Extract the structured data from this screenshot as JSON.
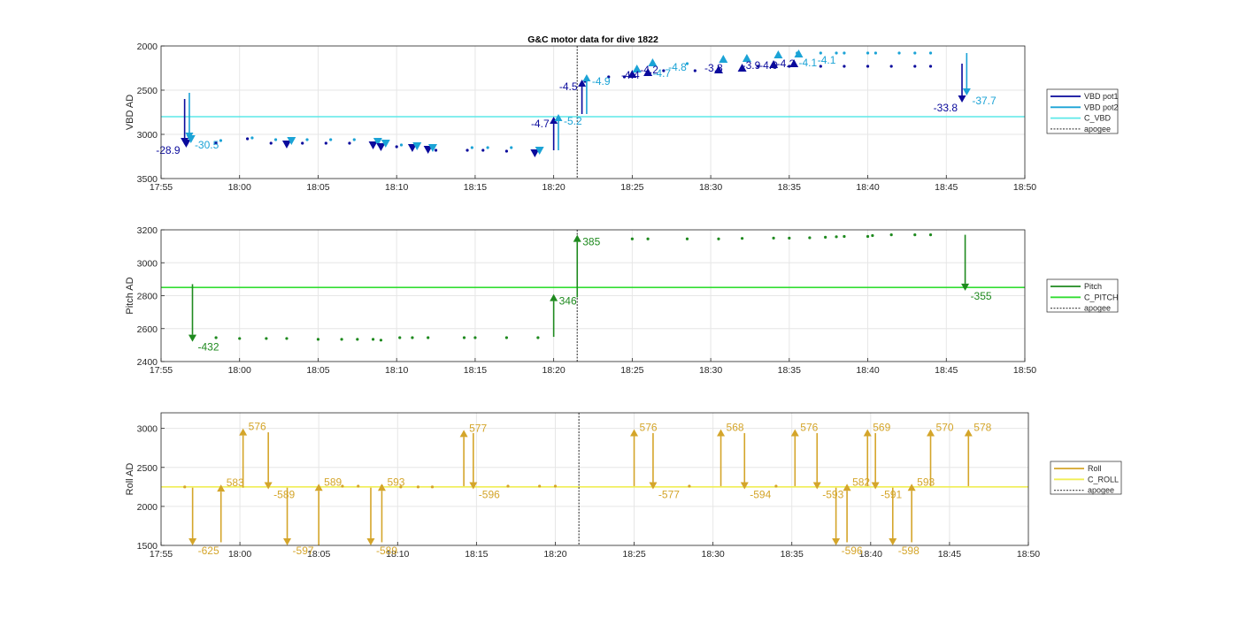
{
  "title": "G&C motor data for dive 1822",
  "colors": {
    "vbd_pot1": "#0a0a9c",
    "vbd_pot2": "#1ba3d6",
    "c_vbd": "#5ce8e8",
    "pitch": "#1f8a1f",
    "c_pitch": "#33dd33",
    "roll": "#d4a52a",
    "c_roll": "#f0ee55",
    "apogee": "#555555",
    "grid": "#e6e6e6"
  },
  "chart_data": [
    {
      "type": "scatter",
      "id": "vbd",
      "ylabel": "VBD AD",
      "xlabel": "",
      "y_reversed": true,
      "xlim": [
        "17:55",
        "18:50"
      ],
      "ylim": [
        2000,
        3500
      ],
      "xticks": [
        "17:55",
        "18:00",
        "18:05",
        "18:10",
        "18:15",
        "18:20",
        "18:25",
        "18:30",
        "18:35",
        "18:40",
        "18:45",
        "18:50"
      ],
      "yticks": [
        2000,
        2500,
        3000,
        3500
      ],
      "legend": [
        "VBD pot1",
        "VBD pot2",
        "C_VBD",
        "apogee"
      ],
      "legend_position": "outside-right",
      "c_value": 2800,
      "apogee": "18:21.5",
      "series": [
        {
          "name": "VBD pot1",
          "points": [
            [
              "17:58.5",
              3100
            ],
            [
              "18:00.5",
              3050
            ],
            [
              "18:02",
              3100
            ],
            [
              "18:04",
              3100
            ],
            [
              "18:05.5",
              3100
            ],
            [
              "18:07",
              3100
            ],
            [
              "18:08.5",
              3100
            ],
            [
              "18:10",
              3140
            ],
            [
              "18:11",
              3140
            ],
            [
              "18:12.5",
              3180
            ],
            [
              "18:14.5",
              3180
            ],
            [
              "18:15.5",
              3180
            ],
            [
              "18:17",
              3190
            ],
            [
              "18:22",
              2400
            ],
            [
              "18:23.5",
              2350
            ],
            [
              "18:24.5",
              2350
            ],
            [
              "18:27",
              2280
            ],
            [
              "18:29",
              2280
            ],
            [
              "18:33",
              2230
            ],
            [
              "18:35",
              2230
            ],
            [
              "18:37",
              2230
            ],
            [
              "18:38.5",
              2230
            ],
            [
              "18:40",
              2230
            ],
            [
              "18:41.5",
              2230
            ],
            [
              "18:43",
              2230
            ],
            [
              "18:44",
              2230
            ]
          ]
        },
        {
          "name": "VBD pot2",
          "points": [
            [
              "17:58.8",
              3070
            ],
            [
              "18:00.8",
              3040
            ],
            [
              "18:02.3",
              3060
            ],
            [
              "18:04.3",
              3060
            ],
            [
              "18:05.8",
              3060
            ],
            [
              "18:07.3",
              3060
            ],
            [
              "18:10.3",
              3120
            ],
            [
              "18:11.3",
              3120
            ],
            [
              "18:14.8",
              3150
            ],
            [
              "18:15.8",
              3150
            ],
            [
              "18:17.3",
              3150
            ],
            [
              "18:28.5",
              2200
            ],
            [
              "18:35.5",
              2080
            ],
            [
              "18:37",
              2080
            ],
            [
              "18:38",
              2080
            ],
            [
              "18:38.5",
              2080
            ],
            [
              "18:40",
              2080
            ],
            [
              "18:40.5",
              2080
            ],
            [
              "18:42",
              2080
            ],
            [
              "18:43",
              2080
            ],
            [
              "18:44",
              2080
            ]
          ]
        }
      ],
      "moves": [
        {
          "series": "VBD pot1",
          "x": "17:56.5",
          "from": 2600,
          "to": 3120,
          "label": "-28.9"
        },
        {
          "series": "VBD pot2",
          "x": "17:56.8",
          "from": 2530,
          "to": 3060,
          "label": "-30.5"
        },
        {
          "series": "VBD pot1",
          "x": "18:20",
          "from": 3180,
          "to": 2800,
          "label": "-4.7"
        },
        {
          "series": "VBD pot2",
          "x": "18:20.3",
          "from": 3180,
          "to": 2770,
          "label": "-5.2"
        },
        {
          "series": "VBD pot1",
          "x": "18:21.8",
          "from": 2770,
          "to": 2380,
          "label": "-4.5"
        },
        {
          "series": "VBD pot2",
          "x": "18:22.1",
          "from": 2770,
          "to": 2320,
          "label": "-4.9"
        },
        {
          "series": "VBD pot1",
          "x": "18:46",
          "from": 2200,
          "to": 2640,
          "label": "-33.8"
        },
        {
          "series": "VBD pot2",
          "x": "18:46.3",
          "from": 2080,
          "to": 2560,
          "label": "-37.7"
        }
      ],
      "markers": [
        {
          "series": "VBD pot1",
          "x": "17:56.6",
          "y": 3110,
          "dir": "down"
        },
        {
          "series": "VBD pot2",
          "x": "17:56.9",
          "y": 3060,
          "dir": "down"
        },
        {
          "series": "VBD pot1",
          "x": "18:03",
          "y": 3120,
          "dir": "down"
        },
        {
          "series": "VBD pot2",
          "x": "18:03.3",
          "y": 3080,
          "dir": "down"
        },
        {
          "series": "VBD pot1",
          "x": "18:08.5",
          "y": 3130,
          "dir": "down"
        },
        {
          "series": "VBD pot2",
          "x": "18:08.8",
          "y": 3090,
          "dir": "down"
        },
        {
          "series": "VBD pot1",
          "x": "18:09",
          "y": 3150,
          "dir": "down"
        },
        {
          "series": "VBD pot2",
          "x": "18:09.3",
          "y": 3110,
          "dir": "down"
        },
        {
          "series": "VBD pot1",
          "x": "18:11",
          "y": 3160,
          "dir": "down"
        },
        {
          "series": "VBD pot2",
          "x": "18:11.3",
          "y": 3140,
          "dir": "down"
        },
        {
          "series": "VBD pot1",
          "x": "18:12",
          "y": 3180,
          "dir": "down"
        },
        {
          "series": "VBD pot2",
          "x": "18:12.3",
          "y": 3160,
          "dir": "down"
        },
        {
          "series": "VBD pot1",
          "x": "18:18.8",
          "y": 3220,
          "dir": "down"
        },
        {
          "series": "VBD pot2",
          "x": "18:19.1",
          "y": 3190,
          "dir": "down"
        },
        {
          "series": "VBD pot1",
          "x": "18:25",
          "y": 2310,
          "dir": "up"
        },
        {
          "series": "VBD pot2",
          "x": "18:25.3",
          "y": 2250,
          "dir": "up"
        },
        {
          "series": "VBD pot1",
          "x": "18:26",
          "y": 2290,
          "dir": "up"
        },
        {
          "series": "VBD pot2",
          "x": "18:26.3",
          "y": 2180,
          "dir": "up"
        },
        {
          "series": "VBD pot1",
          "x": "18:30.5",
          "y": 2260,
          "dir": "up"
        },
        {
          "series": "VBD pot2",
          "x": "18:30.8",
          "y": 2140,
          "dir": "up"
        },
        {
          "series": "VBD pot1",
          "x": "18:32",
          "y": 2240,
          "dir": "up"
        },
        {
          "series": "VBD pot2",
          "x": "18:32.3",
          "y": 2130,
          "dir": "up"
        },
        {
          "series": "VBD pot1",
          "x": "18:34",
          "y": 2200,
          "dir": "up"
        },
        {
          "series": "VBD pot2",
          "x": "18:34.3",
          "y": 2090,
          "dir": "up"
        },
        {
          "series": "VBD pot1",
          "x": "18:35.3",
          "y": 2190,
          "dir": "up"
        },
        {
          "series": "VBD pot2",
          "x": "18:35.6",
          "y": 2080,
          "dir": "up"
        }
      ],
      "annotations": [
        {
          "x": "18:24.3",
          "y": 2370,
          "text": "-4.4",
          "series": "VBD pot1"
        },
        {
          "x": "18:25.5",
          "y": 2310,
          "text": "-4.2",
          "series": "VBD pot1"
        },
        {
          "x": "18:26.3",
          "y": 2350,
          "text": "-4.7",
          "series": "VBD pot2"
        },
        {
          "x": "18:27.3",
          "y": 2280,
          "text": "-4.8",
          "series": "VBD pot2"
        },
        {
          "x": "18:29.6",
          "y": 2290,
          "text": "-3.8",
          "series": "VBD pot1"
        },
        {
          "x": "18:32",
          "y": 2260,
          "text": "-3.9",
          "series": "VBD pot1"
        },
        {
          "x": "18:33.1",
          "y": 2260,
          "text": "-4.0",
          "series": "VBD pot1"
        },
        {
          "x": "18:34.2",
          "y": 2240,
          "text": "-4.2",
          "series": "VBD pot1"
        },
        {
          "x": "18:35.6",
          "y": 2230,
          "text": "-4.1",
          "series": "VBD pot2"
        },
        {
          "x": "18:36.8",
          "y": 2200,
          "text": "-4.1",
          "series": "VBD pot2"
        }
      ]
    },
    {
      "type": "scatter",
      "id": "pitch",
      "ylabel": "Pitch AD",
      "xlabel": "",
      "xlim": [
        "17:55",
        "18:50"
      ],
      "ylim": [
        2400,
        3200
      ],
      "xticks": [
        "17:55",
        "18:00",
        "18:05",
        "18:10",
        "18:15",
        "18:20",
        "18:25",
        "18:30",
        "18:35",
        "18:40",
        "18:45",
        "18:50"
      ],
      "yticks": [
        2400,
        2600,
        2800,
        3000,
        3200
      ],
      "legend": [
        "Pitch",
        "C_PITCH",
        "apogee"
      ],
      "legend_position": "outside-right",
      "c_value": 2850,
      "apogee": "18:21.5",
      "series": [
        {
          "name": "Pitch",
          "points": [
            [
              "17:58.5",
              2545
            ],
            [
              "18:00",
              2540
            ],
            [
              "18:01.7",
              2540
            ],
            [
              "18:03",
              2540
            ],
            [
              "18:05",
              2535
            ],
            [
              "18:06.5",
              2535
            ],
            [
              "18:07.5",
              2535
            ],
            [
              "18:08.5",
              2535
            ],
            [
              "18:09",
              2530
            ],
            [
              "18:10.2",
              2545
            ],
            [
              "18:11",
              2545
            ],
            [
              "18:12",
              2545
            ],
            [
              "18:14.3",
              2545
            ],
            [
              "18:15",
              2545
            ],
            [
              "18:17",
              2545
            ],
            [
              "18:19",
              2545
            ],
            [
              "18:25",
              3145
            ],
            [
              "18:26",
              3145
            ],
            [
              "18:28.5",
              3145
            ],
            [
              "18:30.5",
              3145
            ],
            [
              "18:32",
              3148
            ],
            [
              "18:34",
              3150
            ],
            [
              "18:35",
              3150
            ],
            [
              "18:36.3",
              3152
            ],
            [
              "18:37.3",
              3155
            ],
            [
              "18:38",
              3158
            ],
            [
              "18:38.5",
              3160
            ],
            [
              "18:40",
              3160
            ],
            [
              "18:40.3",
              3165
            ],
            [
              "18:41.5",
              3170
            ],
            [
              "18:43",
              3170
            ],
            [
              "18:44",
              3170
            ]
          ]
        }
      ],
      "moves": [
        {
          "series": "Pitch",
          "x": "17:57",
          "from": 2870,
          "to": 2520,
          "label": "-432"
        },
        {
          "series": "Pitch",
          "x": "18:20",
          "from": 2550,
          "to": 2810,
          "label": "346"
        },
        {
          "series": "Pitch",
          "x": "18:21.5",
          "from": 2790,
          "to": 3170,
          "label": "385"
        },
        {
          "series": "Pitch",
          "x": "18:46.2",
          "from": 3170,
          "to": 2830,
          "label": "-355"
        }
      ],
      "markers": [],
      "annotations": []
    },
    {
      "type": "scatter",
      "id": "roll",
      "ylabel": "Roll AD",
      "xlabel": "",
      "xlim": [
        "17:55",
        "18:50"
      ],
      "ylim": [
        1500,
        3200
      ],
      "xticks": [
        "17:55",
        "18:00",
        "18:05",
        "18:10",
        "18:15",
        "18:20",
        "18:25",
        "18:30",
        "18:35",
        "18:40",
        "18:45",
        "18:50"
      ],
      "yticks": [
        1500,
        2000,
        2500,
        3000
      ],
      "legend": [
        "Roll",
        "C_ROLL",
        "apogee"
      ],
      "legend_position": "outside-right",
      "c_value": 2250,
      "apogee": "18:21.5",
      "series": [
        {
          "name": "Roll",
          "points": [
            [
              "17:56.5",
              2250
            ],
            [
              "18:06.5",
              2260
            ],
            [
              "18:07.5",
              2260
            ],
            [
              "18:09",
              2260
            ],
            [
              "18:10.2",
              2250
            ],
            [
              "18:11.3",
              2250
            ],
            [
              "18:12.2",
              2250
            ],
            [
              "18:17",
              2260
            ],
            [
              "18:19",
              2260
            ],
            [
              "18:20",
              2260
            ],
            [
              "18:28.5",
              2260
            ],
            [
              "18:34",
              2260
            ]
          ]
        }
      ],
      "moves": [
        {
          "series": "Roll",
          "x": "17:57",
          "from": 2240,
          "to": 1500,
          "label": "-625"
        },
        {
          "series": "Roll",
          "x": "17:58.8",
          "from": 1540,
          "to": 2280,
          "label": "583"
        },
        {
          "series": "Roll",
          "x": "18:00.2",
          "from": 2240,
          "to": 3000,
          "label": "576"
        },
        {
          "series": "Roll",
          "x": "18:01.8",
          "from": 2950,
          "to": 2220,
          "label": "-589"
        },
        {
          "series": "Roll",
          "x": "18:03",
          "from": 2240,
          "to": 1500,
          "label": "-597"
        },
        {
          "series": "Roll",
          "x": "18:05",
          "from": 1500,
          "to": 2290,
          "label": "589"
        },
        {
          "series": "Roll",
          "x": "18:08.3",
          "from": 2240,
          "to": 1500,
          "label": "-589"
        },
        {
          "series": "Roll",
          "x": "18:09",
          "from": 1540,
          "to": 2290,
          "label": "593"
        },
        {
          "series": "Roll",
          "x": "18:14.2",
          "from": 2260,
          "to": 2980,
          "label": "577"
        },
        {
          "series": "Roll",
          "x": "18:14.8",
          "from": 2940,
          "to": 2220,
          "label": "-596"
        },
        {
          "series": "Roll",
          "x": "18:25",
          "from": 2260,
          "to": 2990,
          "label": "576"
        },
        {
          "series": "Roll",
          "x": "18:26.2",
          "from": 2940,
          "to": 2220,
          "label": "-577"
        },
        {
          "series": "Roll",
          "x": "18:30.5",
          "from": 2260,
          "to": 2990,
          "label": "568"
        },
        {
          "series": "Roll",
          "x": "18:32",
          "from": 2940,
          "to": 2220,
          "label": "-594"
        },
        {
          "series": "Roll",
          "x": "18:35.2",
          "from": 2260,
          "to": 2990,
          "label": "576"
        },
        {
          "series": "Roll",
          "x": "18:36.6",
          "from": 2940,
          "to": 2220,
          "label": "-593"
        },
        {
          "series": "Roll",
          "x": "18:37.8",
          "from": 2240,
          "to": 1500,
          "label": "-596"
        },
        {
          "series": "Roll",
          "x": "18:38.5",
          "from": 1540,
          "to": 2290,
          "label": "582"
        },
        {
          "series": "Roll",
          "x": "18:39.8",
          "from": 2260,
          "to": 2990,
          "label": "569"
        },
        {
          "series": "Roll",
          "x": "18:40.3",
          "from": 2940,
          "to": 2220,
          "label": "-591"
        },
        {
          "series": "Roll",
          "x": "18:41.4",
          "from": 2240,
          "to": 1500,
          "label": "-598"
        },
        {
          "series": "Roll",
          "x": "18:42.6",
          "from": 1540,
          "to": 2290,
          "label": "593"
        },
        {
          "series": "Roll",
          "x": "18:43.8",
          "from": 2260,
          "to": 2990,
          "label": "570"
        },
        {
          "series": "Roll",
          "x": "18:46.2",
          "from": 2260,
          "to": 2990,
          "label": "578"
        }
      ],
      "markers": [],
      "annotations": []
    }
  ]
}
